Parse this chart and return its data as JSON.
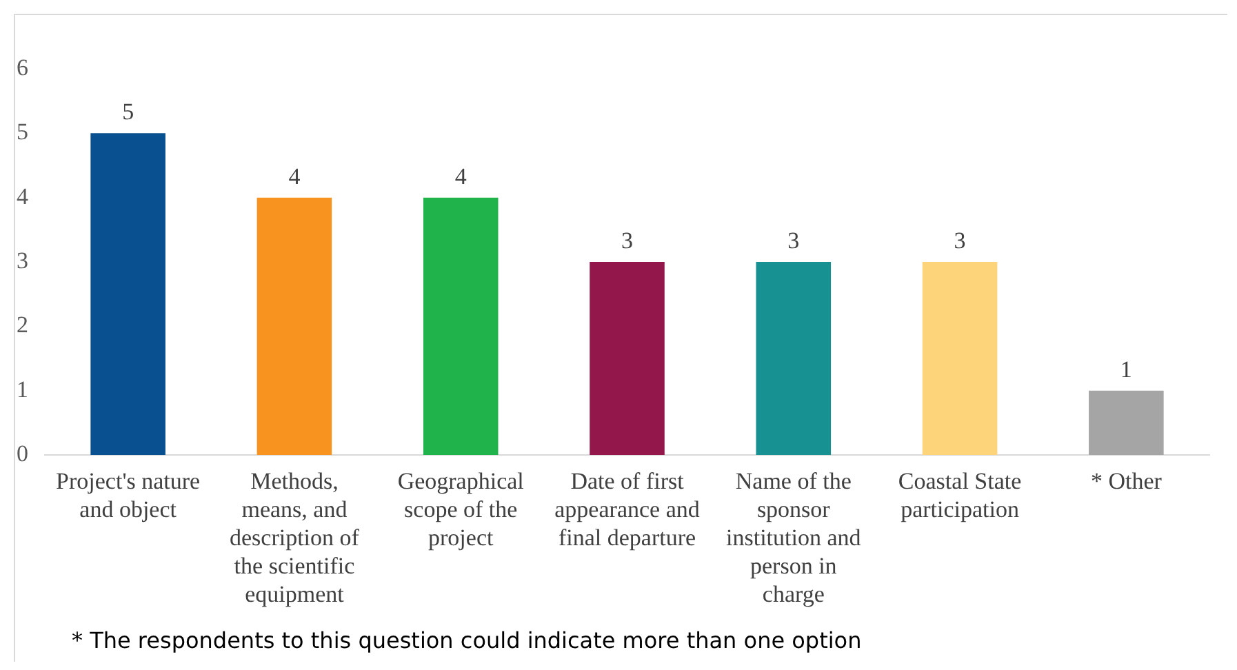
{
  "chart_data": {
    "type": "bar",
    "categories": [
      "Project's nature and object",
      "Methods, means, and description of the scientific equipment",
      "Geographical scope of the project",
      "Date of first appearance and final departure",
      "Name of the sponsor institution and person in charge",
      "Coastal State participation",
      "* Other"
    ],
    "values": [
      5,
      4,
      4,
      3,
      3,
      3,
      1
    ],
    "colors": [
      "#08508f",
      "#f7931e",
      "#20b24b",
      "#93174b",
      "#179191",
      "#fdd47a",
      "#a5a5a5"
    ],
    "ylim": [
      0,
      6
    ],
    "yticks": [
      0,
      1,
      2,
      3,
      4,
      5,
      6
    ],
    "grid": false,
    "data_labels": true,
    "annotations": [
      "* The respondents to this question could indicate more than one option"
    ]
  }
}
